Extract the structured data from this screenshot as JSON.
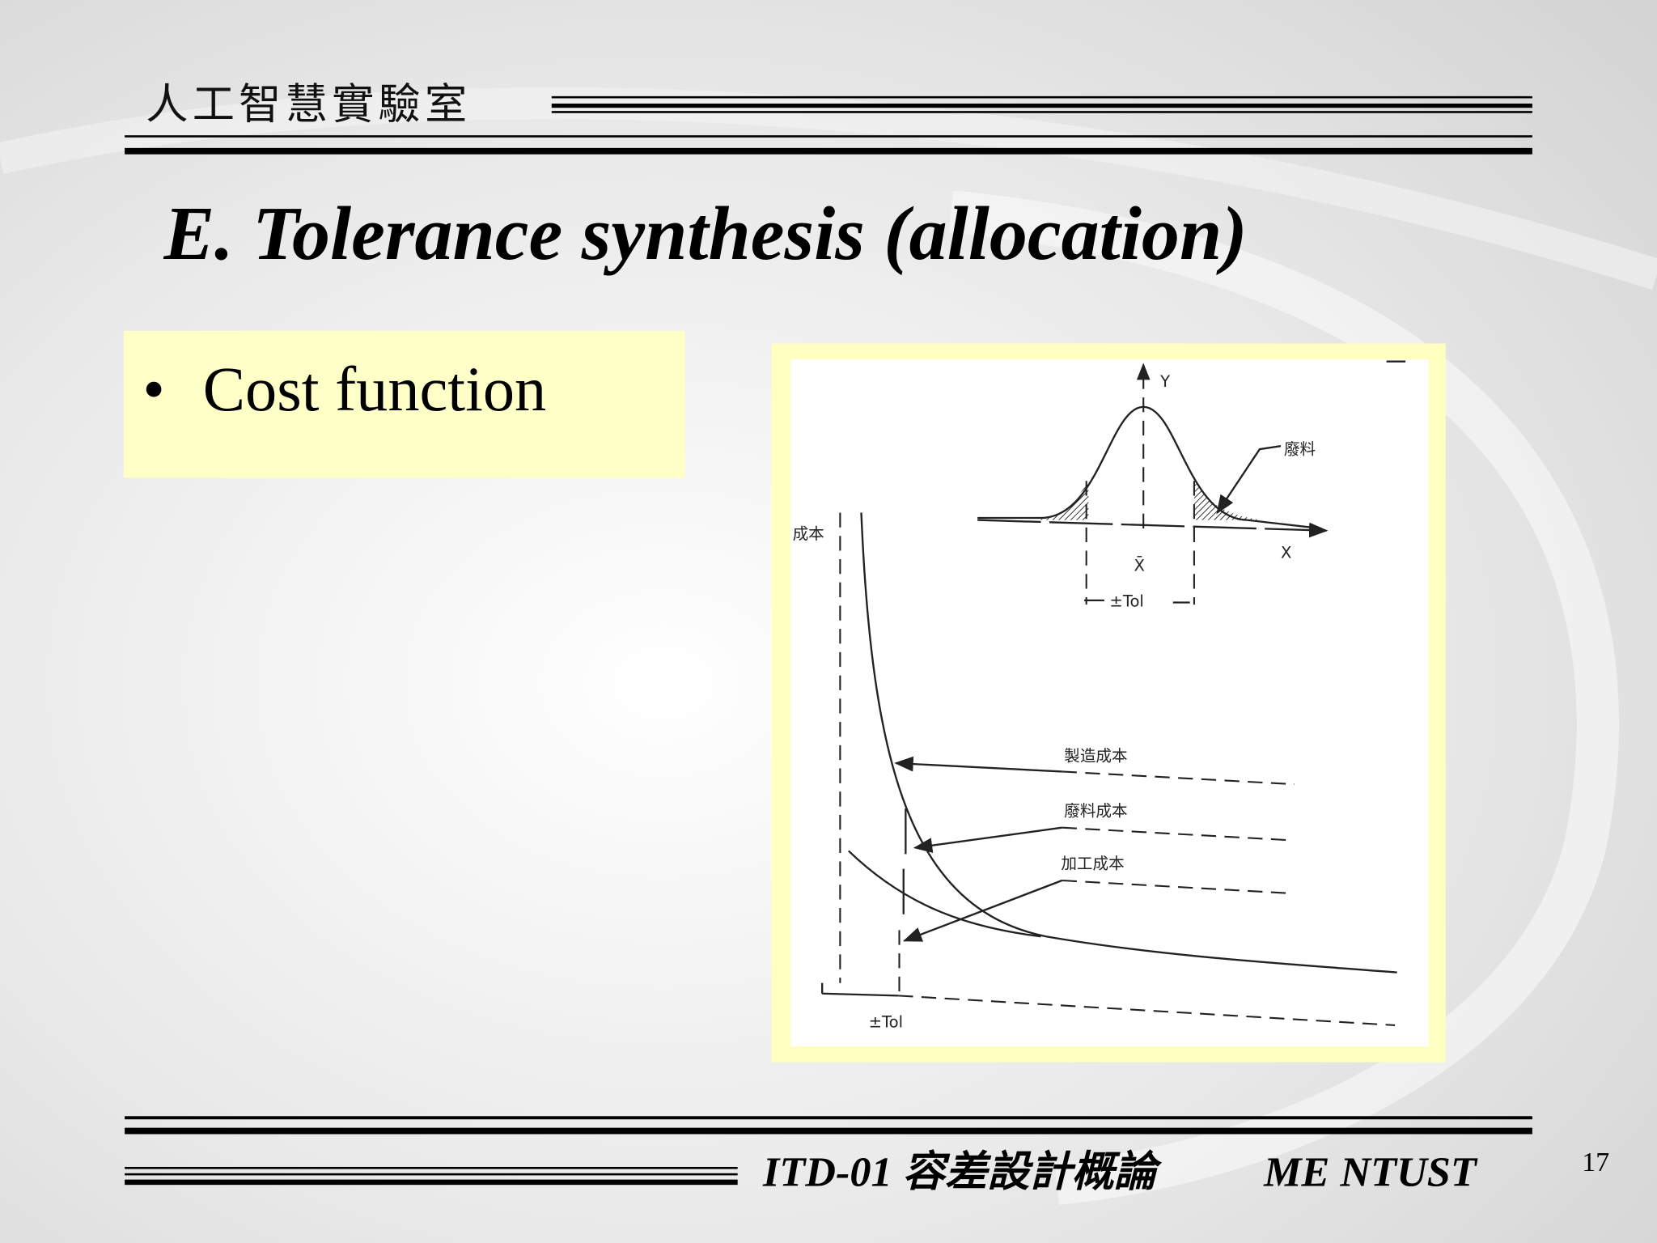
{
  "header": {
    "lab": "人工智慧實驗室"
  },
  "title": "E. Tolerance synthesis (allocation)",
  "bullets": [
    "Cost function"
  ],
  "figure": {
    "y_axis": "Y",
    "x_axis": "X",
    "scrap": "廢料",
    "mean": "X̄",
    "tol_top": "±Tol",
    "cost_axis": "成本",
    "manufacturing_cost": "製造成本",
    "scrap_cost": "廢料成本",
    "processing_cost": "加工成本",
    "tol_bottom": "±Tol"
  },
  "footer": {
    "course": "ITD-01 容差設計概論",
    "school": "ME NTUST",
    "page": "17"
  }
}
